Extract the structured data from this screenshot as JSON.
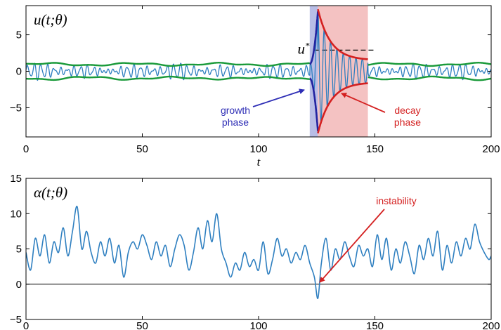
{
  "chart_data": [
    {
      "type": "line",
      "title": "u(t;θ)",
      "xlabel": "t",
      "ylabel": "",
      "xlim": [
        0,
        200
      ],
      "ylim": [
        -9,
        9
      ],
      "x_ticks": [
        "0",
        "50",
        "100",
        "150",
        "200"
      ],
      "y_ticks": [
        {
          "value": 5,
          "label": "5"
        },
        {
          "value": 0,
          "label": "0"
        },
        {
          "value": -5,
          "label": "−5"
        }
      ],
      "series": [
        {
          "name": "",
          "color": "#2e7fc0",
          "description": "oscillating signal u(t), amplitude ~1 except burst near t=122–147"
        },
        {
          "name": "",
          "color": "#1a9a3a",
          "description": "upper envelope, ~+1"
        },
        {
          "name": "",
          "color": "#1a9a3a",
          "description": "lower envelope, ~−1"
        },
        {
          "name": "",
          "color": "#2323a0",
          "description": "growth envelope, t=122–125.5"
        },
        {
          "name": "",
          "color": "#d42020",
          "description": "decay envelope, t=125.5–147"
        }
      ],
      "threshold": {
        "label": "u*",
        "value": 2.9,
        "x_range": [
          124,
          150
        ]
      },
      "shaded_regions": [
        {
          "x_range": [
            122,
            125.5
          ],
          "color": "#b8bde6"
        },
        {
          "x_range": [
            125.5,
            147
          ],
          "color": "#f4c2c2"
        }
      ],
      "annotations": [
        {
          "lines": [
            "growth",
            "phase"
          ],
          "color": "#2d2db5"
        },
        {
          "lines": [
            "decay",
            "phase"
          ],
          "color": "#d42020"
        }
      ]
    },
    {
      "type": "line",
      "title": "α(t;θ)",
      "xlabel": "",
      "ylabel": "",
      "xlim": [
        0,
        200
      ],
      "ylim": [
        -5,
        15
      ],
      "x_ticks": [
        "0",
        "50",
        "100",
        "150",
        "200"
      ],
      "y_ticks": [
        {
          "value": 15,
          "label": "15"
        },
        {
          "value": 10,
          "label": "10"
        },
        {
          "value": 5,
          "label": "5"
        },
        {
          "value": 0,
          "label": "0"
        },
        {
          "value": -5,
          "label": "−5"
        }
      ],
      "baseline": 0,
      "series": [
        {
          "name": "",
          "color": "#2e7fc0",
          "x": [
            0,
            2,
            4,
            6,
            8,
            10,
            12,
            14,
            16,
            18,
            20,
            22,
            24,
            26,
            28,
            30,
            32,
            34,
            36,
            38,
            40,
            42,
            44,
            46,
            48,
            50,
            52,
            54,
            56,
            58,
            60,
            62,
            64,
            66,
            68,
            70,
            72,
            74,
            76,
            78,
            80,
            82,
            84,
            86,
            88,
            90,
            92,
            94,
            96,
            98,
            100,
            102,
            104,
            106,
            108,
            110,
            112,
            114,
            116,
            118,
            120,
            122,
            124,
            125.5,
            127,
            129,
            131,
            133,
            135,
            137,
            139,
            141,
            143,
            145,
            147,
            149,
            151,
            153,
            155,
            157,
            159,
            161,
            163,
            165,
            167,
            169,
            171,
            173,
            175,
            177,
            179,
            181,
            183,
            185,
            187,
            189,
            191,
            193,
            195,
            197,
            199,
            200
          ],
          "y": [
            4.5,
            2.0,
            6.5,
            4.0,
            7.0,
            3.0,
            6.0,
            4.5,
            8.0,
            4.0,
            7.5,
            11.0,
            5.0,
            7.5,
            4.5,
            3.0,
            6.0,
            4.0,
            6.5,
            3.0,
            5.5,
            1.0,
            4.5,
            6.0,
            5.0,
            7.0,
            5.5,
            3.5,
            6.0,
            4.0,
            5.5,
            2.5,
            5.0,
            7.0,
            5.5,
            2.0,
            4.5,
            8.0,
            5.0,
            9.0,
            6.0,
            10.0,
            5.0,
            3.0,
            1.0,
            3.0,
            2.0,
            4.5,
            2.5,
            3.5,
            2.0,
            6.0,
            1.5,
            3.5,
            6.5,
            4.0,
            5.0,
            3.0,
            4.5,
            3.5,
            5.5,
            3.0,
            1.0,
            -2.0,
            3.0,
            6.5,
            2.0,
            5.0,
            3.5,
            6.0,
            4.0,
            2.5,
            5.5,
            4.0,
            5.0,
            2.5,
            7.0,
            3.5,
            6.5,
            2.0,
            5.0,
            3.0,
            6.0,
            4.0,
            1.5,
            5.5,
            3.5,
            6.5,
            4.0,
            7.5,
            2.0,
            5.5,
            3.0,
            6.0,
            4.0,
            6.5,
            5.0,
            8.5,
            6.0,
            4.5,
            3.5,
            4.0
          ]
        }
      ],
      "annotations": [
        {
          "lines": [
            "instability"
          ],
          "color": "#d42020"
        }
      ]
    }
  ]
}
